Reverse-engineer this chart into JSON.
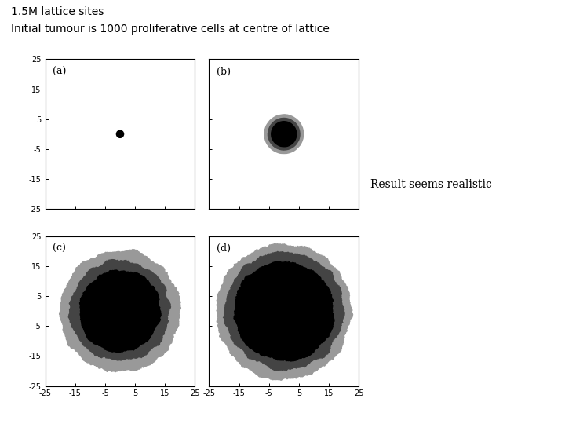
{
  "title_line1": "1.5M lattice sites",
  "title_line2": "Initial tumour is 1000 proliferative cells at centre of lattice",
  "subtitle_right": "Result seems realistic",
  "axis_lim": [
    -25,
    25
  ],
  "axis_ticks": [
    -25,
    -15,
    -5,
    5,
    15,
    25
  ],
  "background_color": "#ffffff",
  "panel_bg": "#ffffff",
  "necrotic_color": "#000000",
  "proliferative_color": "#444444",
  "quiescent_color": "#999999",
  "dot_color": "#000000",
  "panels": {
    "a": {
      "dot_r": 1.2
    },
    "b": {
      "necrotic_r": 4.2,
      "prolif_r": 5.3,
      "quiescent_r": 6.5,
      "noise_q": 0.015,
      "noise_p": 0.015,
      "noise_n": 0.015,
      "smooth_q": 20,
      "smooth_p": 20,
      "smooth_n": 20
    },
    "c": {
      "necrotic_r": 13.5,
      "prolif_r": 16.5,
      "quiescent_r": 20.0,
      "noise_q": 0.07,
      "noise_p": 0.08,
      "noise_n": 0.09,
      "smooth_q": 18,
      "smooth_p": 18,
      "smooth_n": 22
    },
    "d": {
      "necrotic_r": 16.5,
      "prolif_r": 19.5,
      "quiescent_r": 22.5,
      "noise_q": 0.07,
      "noise_p": 0.08,
      "noise_n": 0.09,
      "smooth_q": 18,
      "smooth_p": 18,
      "smooth_n": 22
    }
  },
  "seeds": {
    "b": {
      "q": 10,
      "p": 20,
      "n": 30
    },
    "c": {
      "q": 721,
      "p": 845,
      "n": 1093
    },
    "d": {
      "q": 912,
      "p": 1053,
      "n": 1189
    }
  }
}
